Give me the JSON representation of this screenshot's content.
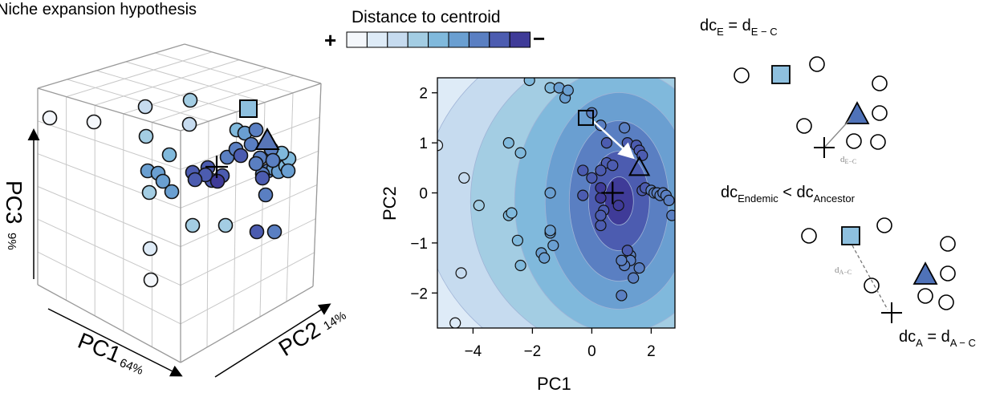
{
  "figure": {
    "title": "Niche expansion hypothesis",
    "colorbar": {
      "label": "Distance to centroid",
      "plus": "+",
      "minus": "−",
      "colors": [
        "#f4f7fb",
        "#deebf7",
        "#c6dbef",
        "#a3cde3",
        "#80b9dc",
        "#6a9fd1",
        "#5a7fc2",
        "#4c5cb0",
        "#3f3b98"
      ]
    },
    "panel3d": {
      "axis_pc1": "PC1",
      "axis_pc1_pct": "64%",
      "axis_pc2": "PC2",
      "axis_pc2_pct": "14%",
      "axis_pc3": "PC3",
      "axis_pc3_pct": "9%"
    },
    "schematic": {
      "dcE_base": "dc",
      "dcE_sub": "E",
      "dcE_eq": " = d",
      "dcE_eq_sub": "E − C",
      "dE_base": "d",
      "dE_sub": "E−C",
      "ineq_a": "dc",
      "ineq_a_sub": "Endemic",
      "ineq_lt": " < dc",
      "ineq_b_sub": "Ancestor",
      "dA_base": "d",
      "dA_sub": "A−C",
      "dcA_base": "dc",
      "dcA_sub": "A",
      "dcA_eq": " = d",
      "dcA_eq_sub": "A − C"
    }
  },
  "chart_data": [
    {
      "type": "scatter",
      "title": "",
      "xlabel": "PC1",
      "ylabel": "PC2",
      "xlim": [
        -5.2,
        2.8
      ],
      "ylim": [
        -2.7,
        2.3
      ],
      "xticks": [
        -4,
        -2,
        0,
        2
      ],
      "yticks": [
        -2,
        -1,
        0,
        1,
        2
      ],
      "xtick_labels": [
        "−4",
        "−2",
        "0",
        "2"
      ],
      "ytick_labels": [
        "−2",
        "−1",
        "0",
        "1",
        "2"
      ],
      "background": "filled contour of distance to centroid",
      "centroid": [
        0.7,
        0.0
      ],
      "endemic_square": [
        -0.2,
        1.5
      ],
      "ancestor_triangle": [
        1.6,
        0.5
      ],
      "points": [
        [
          -4.3,
          0.3
        ],
        [
          -3.8,
          -0.25
        ],
        [
          -4.4,
          -1.6
        ],
        [
          -4.6,
          -2.6
        ],
        [
          -5.2,
          0.95
        ],
        [
          -2.8,
          1.0
        ],
        [
          -2.4,
          0.8
        ],
        [
          -2.8,
          -0.45
        ],
        [
          -2.7,
          -0.4
        ],
        [
          -2.5,
          -0.95
        ],
        [
          -2.4,
          -1.45
        ],
        [
          -2.1,
          2.25
        ],
        [
          -1.4,
          2.1
        ],
        [
          -1.1,
          2.1
        ],
        [
          -0.9,
          1.9
        ],
        [
          -0.8,
          2.05
        ],
        [
          -1.4,
          -0.8
        ],
        [
          -1.4,
          -0.75
        ],
        [
          -1.7,
          -1.2
        ],
        [
          -1.6,
          -1.3
        ],
        [
          -1.3,
          -1.05
        ],
        [
          -1.4,
          0.0
        ],
        [
          -0.3,
          0.45
        ],
        [
          -0.3,
          -0.05
        ],
        [
          0.0,
          0.3
        ],
        [
          0.0,
          1.6
        ],
        [
          0.3,
          1.35
        ],
        [
          0.5,
          1.0
        ],
        [
          0.5,
          0.6
        ],
        [
          0.3,
          -0.1
        ],
        [
          0.4,
          -0.35
        ],
        [
          0.9,
          -0.25
        ],
        [
          0.3,
          0.1
        ],
        [
          0.3,
          -0.65
        ],
        [
          0.7,
          0.55
        ],
        [
          0.3,
          0.45
        ],
        [
          1.1,
          1.3
        ],
        [
          1.2,
          1.0
        ],
        [
          1.5,
          0.95
        ],
        [
          1.6,
          0.85
        ],
        [
          1.7,
          0.75
        ],
        [
          1.7,
          0.05
        ],
        [
          1.8,
          0.1
        ],
        [
          2.0,
          0.05
        ],
        [
          2.1,
          0.0
        ],
        [
          2.2,
          0.0
        ],
        [
          2.3,
          -0.05
        ],
        [
          2.4,
          0.0
        ],
        [
          2.5,
          -0.05
        ],
        [
          2.6,
          -0.15
        ],
        [
          2.7,
          -0.45
        ],
        [
          1.3,
          -1.25
        ],
        [
          1.3,
          -1.35
        ],
        [
          1.1,
          -1.45
        ],
        [
          1.2,
          -1.15
        ],
        [
          1.0,
          -1.35
        ],
        [
          1.6,
          -1.5
        ],
        [
          1.4,
          -1.7
        ],
        [
          1.0,
          -2.05
        ],
        [
          0.3,
          -0.45
        ]
      ]
    }
  ]
}
